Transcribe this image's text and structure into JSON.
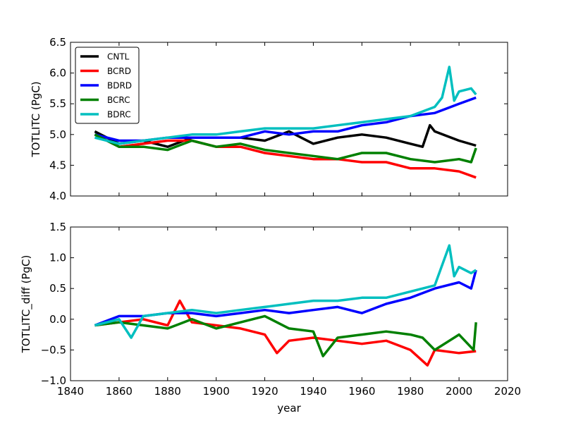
{
  "chart_data": [
    {
      "type": "line",
      "ylabel": "TOTLITC (PgC)",
      "xlabel": "",
      "xlim": [
        1840,
        2020
      ],
      "ylim": [
        4.0,
        6.5
      ],
      "yticks": [
        "4.0",
        "4.5",
        "5.0",
        "5.5",
        "6.0",
        "6.5"
      ],
      "xtick_labels_shown": false,
      "legend": {
        "placement": "top-left",
        "entries": [
          "CNTL",
          "BCRD",
          "BDRD",
          "BCRC",
          "BDRC"
        ]
      },
      "series": [
        {
          "name": "CNTL",
          "color": "#000000",
          "x": [
            1850,
            1860,
            1870,
            1880,
            1890,
            1900,
            1910,
            1920,
            1930,
            1940,
            1950,
            1960,
            1970,
            1980,
            1985,
            1988,
            1990,
            2000,
            2007
          ],
          "y": [
            5.05,
            4.85,
            4.9,
            4.8,
            4.95,
            4.95,
            4.95,
            4.9,
            5.05,
            4.85,
            4.95,
            5.0,
            4.95,
            4.85,
            4.8,
            5.15,
            5.05,
            4.9,
            4.82
          ]
        },
        {
          "name": "BCRD",
          "color": "#ff0000",
          "x": [
            1850,
            1860,
            1870,
            1880,
            1890,
            1900,
            1910,
            1920,
            1930,
            1940,
            1950,
            1960,
            1970,
            1980,
            1990,
            2000,
            2007
          ],
          "y": [
            5.0,
            4.8,
            4.85,
            4.9,
            4.9,
            4.8,
            4.8,
            4.7,
            4.65,
            4.6,
            4.6,
            4.55,
            4.55,
            4.45,
            4.45,
            4.4,
            4.3
          ]
        },
        {
          "name": "BDRD",
          "color": "#0000ff",
          "x": [
            1850,
            1860,
            1870,
            1880,
            1890,
            1900,
            1910,
            1920,
            1930,
            1940,
            1950,
            1960,
            1970,
            1980,
            1990,
            2000,
            2007
          ],
          "y": [
            5.0,
            4.9,
            4.9,
            4.95,
            4.95,
            4.95,
            4.95,
            5.05,
            5.0,
            5.05,
            5.05,
            5.15,
            5.2,
            5.3,
            5.35,
            5.5,
            5.6
          ]
        },
        {
          "name": "BCRC",
          "color": "#008000",
          "x": [
            1850,
            1860,
            1870,
            1880,
            1890,
            1900,
            1910,
            1920,
            1930,
            1940,
            1950,
            1960,
            1970,
            1980,
            1990,
            2000,
            2005,
            2007
          ],
          "y": [
            5.0,
            4.8,
            4.8,
            4.75,
            4.9,
            4.8,
            4.85,
            4.75,
            4.7,
            4.65,
            4.6,
            4.7,
            4.7,
            4.6,
            4.55,
            4.6,
            4.55,
            4.78
          ]
        },
        {
          "name": "BDRC",
          "color": "#00bfbf",
          "x": [
            1850,
            1860,
            1870,
            1880,
            1890,
            1900,
            1910,
            1920,
            1930,
            1940,
            1950,
            1960,
            1970,
            1980,
            1990,
            1993,
            1996,
            1998,
            2000,
            2005,
            2007
          ],
          "y": [
            4.95,
            4.85,
            4.9,
            4.95,
            5.0,
            5.0,
            5.05,
            5.1,
            5.1,
            5.1,
            5.15,
            5.2,
            5.25,
            5.3,
            5.45,
            5.6,
            6.1,
            5.55,
            5.7,
            5.75,
            5.65
          ]
        }
      ]
    },
    {
      "type": "line",
      "ylabel": "TOTLITC_diff (PgC)",
      "xlabel": "year",
      "xlim": [
        1840,
        2020
      ],
      "ylim": [
        -1.0,
        1.5
      ],
      "yticks": [
        "−1.0",
        "−0.5",
        "0.0",
        "0.5",
        "1.0",
        "1.5"
      ],
      "xticks": [
        "1840",
        "1860",
        "1880",
        "1900",
        "1920",
        "1940",
        "1960",
        "1980",
        "2000",
        "2020"
      ],
      "series": [
        {
          "name": "BCRD",
          "color": "#ff0000",
          "x": [
            1850,
            1860,
            1870,
            1880,
            1885,
            1890,
            1900,
            1910,
            1920,
            1925,
            1930,
            1940,
            1950,
            1960,
            1970,
            1980,
            1987,
            1990,
            2000,
            2007
          ],
          "y": [
            -0.1,
            -0.05,
            0.0,
            -0.1,
            0.3,
            -0.05,
            -0.1,
            -0.15,
            -0.25,
            -0.55,
            -0.35,
            -0.3,
            -0.35,
            -0.4,
            -0.35,
            -0.5,
            -0.75,
            -0.5,
            -0.55,
            -0.52
          ]
        },
        {
          "name": "BDRD",
          "color": "#0000ff",
          "x": [
            1850,
            1860,
            1870,
            1880,
            1890,
            1900,
            1910,
            1920,
            1930,
            1940,
            1950,
            1960,
            1970,
            1980,
            1990,
            2000,
            2005,
            2007
          ],
          "y": [
            -0.1,
            0.05,
            0.05,
            0.1,
            0.1,
            0.05,
            0.1,
            0.15,
            0.1,
            0.15,
            0.2,
            0.1,
            0.25,
            0.35,
            0.5,
            0.6,
            0.5,
            0.8
          ]
        },
        {
          "name": "BCRC",
          "color": "#008000",
          "x": [
            1850,
            1860,
            1870,
            1880,
            1890,
            1900,
            1910,
            1920,
            1930,
            1940,
            1944,
            1950,
            1960,
            1970,
            1980,
            1985,
            1990,
            2000,
            2006,
            2007
          ],
          "y": [
            -0.1,
            -0.05,
            -0.1,
            -0.15,
            0.0,
            -0.15,
            -0.05,
            0.05,
            -0.15,
            -0.2,
            -0.6,
            -0.3,
            -0.25,
            -0.2,
            -0.25,
            -0.3,
            -0.5,
            -0.25,
            -0.5,
            -0.05
          ]
        },
        {
          "name": "BDRC",
          "color": "#00bfbf",
          "x": [
            1850,
            1860,
            1865,
            1870,
            1880,
            1890,
            1900,
            1910,
            1920,
            1930,
            1940,
            1950,
            1960,
            1970,
            1980,
            1990,
            1996,
            1998,
            2000,
            2005,
            2007
          ],
          "y": [
            -0.1,
            0.0,
            -0.3,
            0.05,
            0.1,
            0.15,
            0.1,
            0.15,
            0.2,
            0.25,
            0.3,
            0.3,
            0.35,
            0.35,
            0.45,
            0.55,
            1.2,
            0.7,
            0.85,
            0.75,
            0.8
          ]
        }
      ]
    }
  ]
}
